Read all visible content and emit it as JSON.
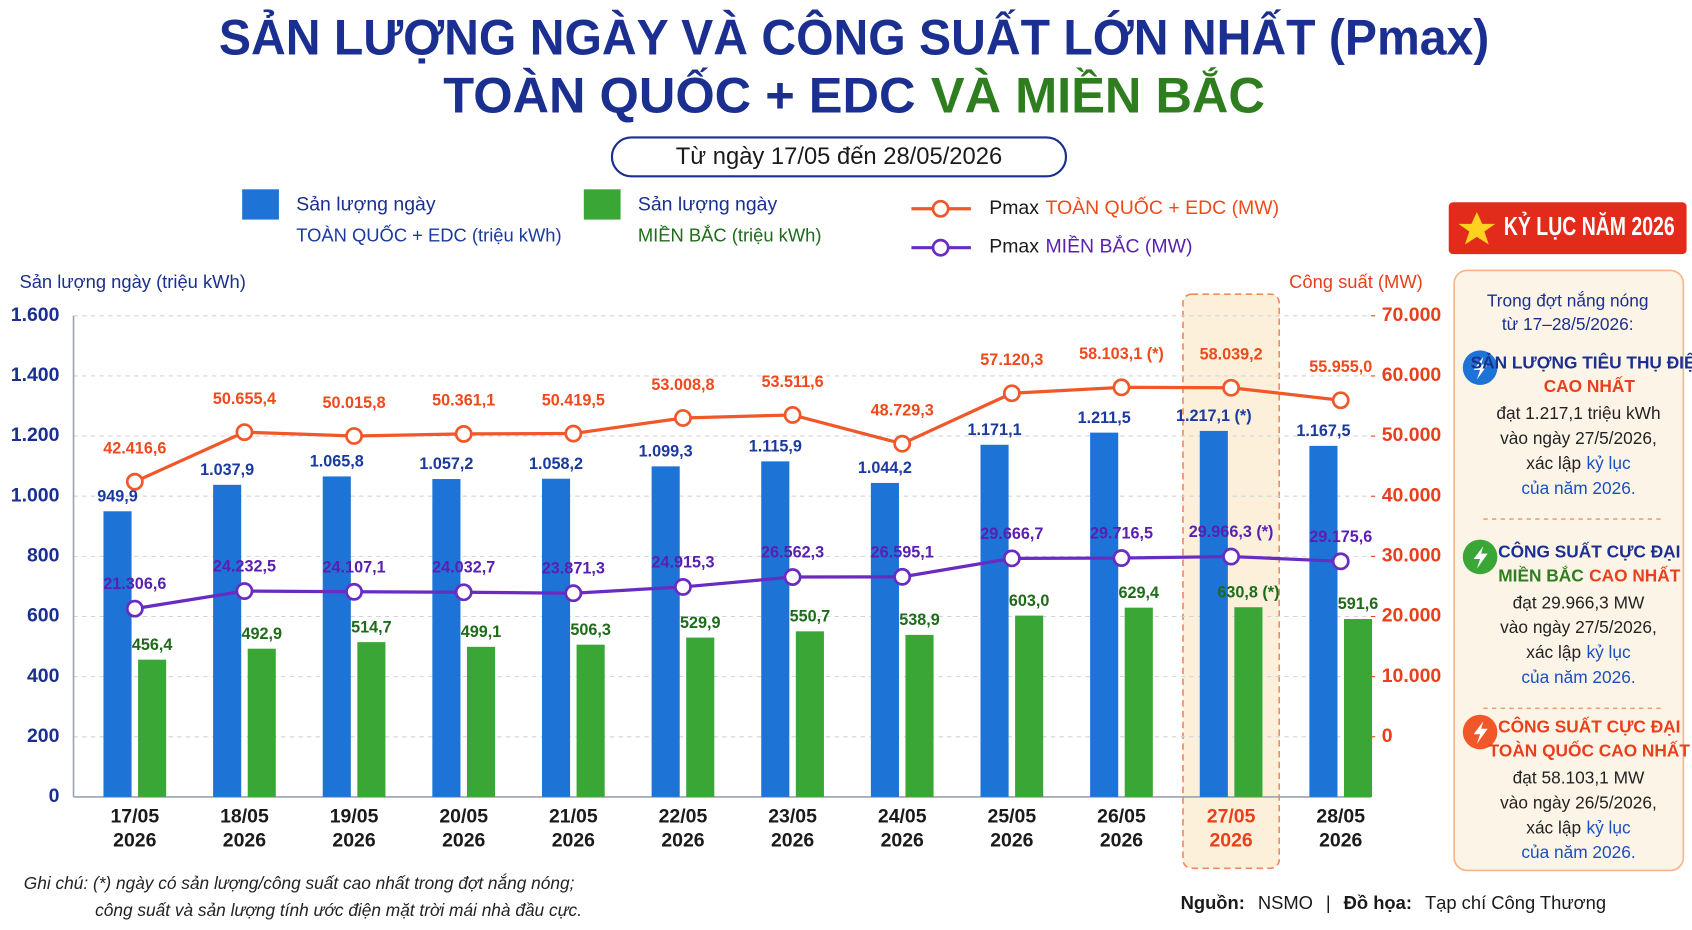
{
  "header": {
    "title_line1": "SẢN LƯỢNG NGÀY VÀ CÔNG SUẤT LỚN NHẤT (Pmax)",
    "title_line2": [
      {
        "text": "TOÀN QUỐC + EDC",
        "color": "#1a2f8f"
      },
      {
        "text": "VÀ MIỀN BẮC",
        "color": "#2e7d1e"
      }
    ],
    "subtitle": "Từ ngày 17/05 đến 28/05/2026"
  },
  "chart_data": {
    "type": "combo",
    "y_axis_title": "Sản lượng ngày (triệu kWh)",
    "y2_axis_title": "Công suất (MW)",
    "categories": [
      "17/05",
      "18/05",
      "19/05",
      "20/05",
      "21/05",
      "22/05",
      "23/05",
      "24/05",
      "25/05",
      "26/05",
      "27/05",
      "28/05"
    ],
    "category_sublabels": [
      "2026",
      "2026",
      "2026",
      "2026",
      "2026",
      "2026",
      "2026",
      "2026",
      "2026",
      "2026",
      "2026",
      "2026"
    ],
    "highlight_index": 10,
    "ylim": [
      0,
      1600
    ],
    "yticks": [
      0,
      200,
      400,
      600,
      800,
      {
        "value": 1000,
        "label": "1.000"
      },
      {
        "value": 1200,
        "label": "1.200"
      },
      {
        "value": 1400,
        "label": "1.400"
      },
      {
        "value": 1600,
        "label": "1.600"
      }
    ],
    "y2lim": [
      -10000,
      70000
    ],
    "y2ticks": [
      0,
      {
        "value": 10000,
        "label": "10.000"
      },
      {
        "value": 20000,
        "label": "20.000"
      },
      {
        "value": 30000,
        "label": "30.000"
      },
      {
        "value": 40000,
        "label": "40.000"
      },
      {
        "value": 50000,
        "label": "50.000"
      },
      {
        "value": 60000,
        "label": "60.000"
      },
      {
        "value": 70000,
        "label": "70.000"
      }
    ],
    "grid": true,
    "series": [
      {
        "name": "Sản lượng ngày",
        "name_detail": "TOÀN QUỐC + EDC (triệu kWh)",
        "type": "bar",
        "axis": "y",
        "color": "#1e74d6",
        "label_color": "#1a3a9f",
        "values": [
          949.9,
          1037.9,
          1065.8,
          1057.2,
          1058.2,
          1099.3,
          1115.9,
          1044.2,
          1171.1,
          1211.5,
          1217.1,
          1167.5
        ],
        "value_labels": [
          "949,9",
          "1.037,9",
          "1.065,8",
          "1.057,2",
          "1.058,2",
          "1.099,3",
          "1.115,9",
          "1.044,2",
          "1.171,1",
          "1.211,5",
          "1.217,1 (*)",
          "1.167,5"
        ]
      },
      {
        "name": "Sản lượng ngày",
        "name_detail": "MIỀN BẮC (triệu kWh)",
        "type": "bar",
        "axis": "y",
        "color": "#3aa635",
        "label_color": "#1e6b1a",
        "values": [
          456.4,
          492.9,
          514.7,
          499.1,
          506.3,
          529.9,
          550.7,
          538.9,
          603.0,
          629.4,
          630.8,
          591.6
        ],
        "value_labels": [
          "456,4",
          "492,9",
          "514,7",
          "499,1",
          "506,3",
          "529,9",
          "550,7",
          "538,9",
          "603,0",
          "629,4",
          "630,8 (*)",
          "591,6"
        ]
      },
      {
        "name": "Pmax",
        "name_detail": "TOÀN QUỐC + EDC (MW)",
        "type": "line",
        "axis": "y2",
        "color": "#f0582a",
        "label_color": "#ee4a1c",
        "values": [
          42416.6,
          50655.4,
          50015.8,
          50361.1,
          50419.5,
          53008.8,
          53511.6,
          48729.3,
          57120.3,
          58103.1,
          58039.2,
          55955.0
        ],
        "value_labels": [
          "42.416,6",
          "50.655,4",
          "50.015,8",
          "50.361,1",
          "50.419,5",
          "53.008,8",
          "53.511,6",
          "48.729,3",
          "57.120,3",
          "58.103,1 (*)",
          "58.039,2",
          "55.955,0"
        ]
      },
      {
        "name": "Pmax",
        "name_detail": "MIỀN BẮC (MW)",
        "type": "line",
        "axis": "y2",
        "color": "#6a2bc2",
        "label_color": "#5a1fb0",
        "values": [
          21306.6,
          24232.5,
          24107.1,
          24032.7,
          23871.3,
          24915.3,
          26562.3,
          26595.1,
          29666.7,
          29716.5,
          29966.3,
          29175.6
        ],
        "value_labels": [
          "21.306,6",
          "24.232,5",
          "24.107,1",
          "24.032,7",
          "23.871,3",
          "24.915,3",
          "26.562,3",
          "26.595,1",
          "29.666,7",
          "29.716,5",
          "29.966,3 (*)",
          "29.175,6"
        ]
      }
    ]
  },
  "record_panel": {
    "badge": "KỶ LỤC NĂM 2026",
    "intro": [
      "Trong đợt nắng nóng",
      "từ 17–28/5/2026:"
    ],
    "items": [
      {
        "icon_color": "#1e74d6",
        "heading": [
          [
            {
              "text": "SẢN LƯỢNG TIÊU THỤ ĐIỆN",
              "color": "#1a2f8f"
            }
          ],
          [
            {
              "text": "CAO NHẤT",
              "color": "#e8401c"
            }
          ]
        ],
        "body": [
          [
            {
              "text": "đạt 1.217,1 triệu kWh",
              "color": "#222222"
            }
          ],
          [
            {
              "text": "vào ngày 27/5/2026,",
              "color": "#222222"
            }
          ],
          [
            {
              "text": "xác lập",
              "color": "#222222"
            },
            {
              "text": "kỷ lục",
              "color": "#1a4fbf"
            }
          ],
          [
            {
              "text": "của năm 2026.",
              "color": "#1a4fbf"
            }
          ]
        ]
      },
      {
        "icon_color": "#3aa635",
        "heading": [
          [
            {
              "text": "CÔNG SUẤT CỰC ĐẠI",
              "color": "#1a2f8f"
            }
          ],
          [
            {
              "text": "MIỀN BẮC",
              "color": "#2e7d1e"
            },
            {
              "text": "CAO NHẤT",
              "color": "#e8401c"
            }
          ]
        ],
        "body": [
          [
            {
              "text": "đạt 29.966,3 MW",
              "color": "#222222"
            }
          ],
          [
            {
              "text": "vào ngày 27/5/2026,",
              "color": "#222222"
            }
          ],
          [
            {
              "text": "xác lập",
              "color": "#222222"
            },
            {
              "text": "kỷ lục",
              "color": "#1a4fbf"
            }
          ],
          [
            {
              "text": "của năm 2026.",
              "color": "#1a4fbf"
            }
          ]
        ]
      },
      {
        "icon_color": "#f0582a",
        "heading": [
          [
            {
              "text": "CÔNG SUẤT CỰC ĐẠI",
              "color": "#e8401c"
            }
          ],
          [
            {
              "text": "TOÀN QUỐC CAO NHẤT",
              "color": "#e8401c"
            }
          ]
        ],
        "body": [
          [
            {
              "text": "đạt 58.103,1 MW",
              "color": "#222222"
            }
          ],
          [
            {
              "text": "vào ngày 26/5/2026,",
              "color": "#222222"
            }
          ],
          [
            {
              "text": "xác lập",
              "color": "#222222"
            },
            {
              "text": "kỷ lục",
              "color": "#1a4fbf"
            }
          ],
          [
            {
              "text": "của năm 2026.",
              "color": "#1a4fbf"
            }
          ]
        ]
      }
    ]
  },
  "footer": {
    "notes": [
      "Ghi chú: (*) ngày có sản lượng/công suất cao nhất trong đợt nắng nóng;",
      "công suất và sản lượng tính ước điện mặt trời mái nhà đầu cực."
    ],
    "credits": [
      {
        "text": "Nguồn:",
        "bold": true
      },
      {
        "text": "NSMO",
        "bold": false
      },
      {
        "text": "|",
        "bold": false
      },
      {
        "text": "Đồ họa:",
        "bold": true
      },
      {
        "text": "Tạp chí Công Thương",
        "bold": false
      }
    ]
  }
}
